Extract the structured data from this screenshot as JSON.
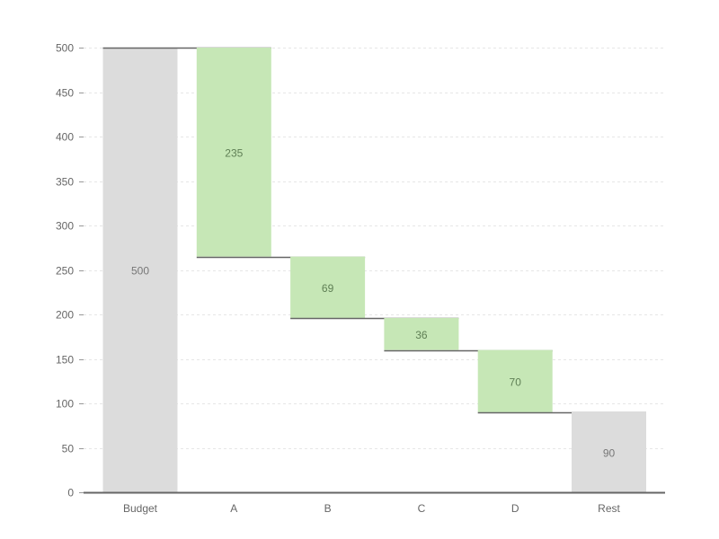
{
  "chart_data": {
    "type": "bar",
    "subtype": "waterfall",
    "title": "",
    "xlabel": "",
    "ylabel": "",
    "categories": [
      "Budget",
      "A",
      "B",
      "C",
      "D",
      "Rest"
    ],
    "values": [
      500,
      235,
      69,
      36,
      70,
      90
    ],
    "bars": [
      {
        "label": "Budget",
        "value": 500,
        "start": 0,
        "end": 500,
        "kind": "total"
      },
      {
        "label": "A",
        "value": 235,
        "start": 265,
        "end": 500,
        "kind": "delta"
      },
      {
        "label": "B",
        "value": 69,
        "start": 196,
        "end": 265,
        "kind": "delta"
      },
      {
        "label": "C",
        "value": 36,
        "start": 160,
        "end": 196,
        "kind": "delta"
      },
      {
        "label": "D",
        "value": 70,
        "start": 90,
        "end": 160,
        "kind": "delta"
      },
      {
        "label": "Rest",
        "value": 90,
        "start": 0,
        "end": 90,
        "kind": "total"
      }
    ],
    "ylim": [
      0,
      500
    ],
    "yticks": [
      0,
      50,
      100,
      150,
      200,
      250,
      300,
      350,
      400,
      450,
      500
    ],
    "grid": true,
    "legend": null,
    "colors": {
      "total": "#dcdcdc",
      "delta": "#c6e7b6",
      "connector": "#666666",
      "total_text": "#777777",
      "delta_text": "#5f7f55"
    }
  }
}
